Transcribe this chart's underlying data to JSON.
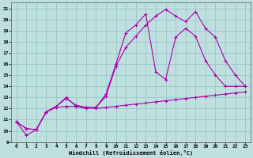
{
  "xlabel": "Windchill (Refroidissement éolien,°C)",
  "bg_color": "#c0e0e0",
  "grid_color": "#98c8c8",
  "line_color": "#aa00aa",
  "xlim": [
    -0.5,
    23.5
  ],
  "ylim": [
    9.0,
    21.5
  ],
  "xticks": [
    0,
    1,
    2,
    3,
    4,
    5,
    6,
    7,
    8,
    9,
    10,
    11,
    12,
    13,
    14,
    15,
    16,
    17,
    18,
    19,
    20,
    21,
    22,
    23
  ],
  "yticks": [
    9,
    10,
    11,
    12,
    13,
    14,
    15,
    16,
    17,
    18,
    19,
    20,
    21
  ],
  "line1_x": [
    0,
    1,
    2,
    3,
    4,
    5,
    6,
    7,
    8,
    9,
    10,
    11,
    12,
    13,
    14,
    15,
    16,
    17,
    18,
    19,
    20,
    21,
    22,
    23
  ],
  "line1_y": [
    10.8,
    9.6,
    10.1,
    11.7,
    12.1,
    12.2,
    12.2,
    12.1,
    12.0,
    12.1,
    12.2,
    12.3,
    12.4,
    12.5,
    12.6,
    12.7,
    12.8,
    12.9,
    13.0,
    13.1,
    13.2,
    13.3,
    13.4,
    13.5
  ],
  "line2_x": [
    0,
    1,
    2,
    3,
    4,
    5,
    6,
    7,
    8,
    9,
    10,
    11,
    12,
    13,
    14,
    15,
    16,
    17,
    18,
    19,
    20,
    21,
    22,
    23
  ],
  "line2_y": [
    10.8,
    10.2,
    10.1,
    11.7,
    12.2,
    12.9,
    12.3,
    12.1,
    12.1,
    13.1,
    15.8,
    17.5,
    18.5,
    19.5,
    20.3,
    20.9,
    20.3,
    19.8,
    20.7,
    19.2,
    18.4,
    16.3,
    15.0,
    14.0
  ],
  "line3_x": [
    0,
    1,
    2,
    3,
    4,
    5,
    6,
    7,
    8,
    9,
    10,
    11,
    12,
    13,
    14,
    15,
    16,
    17,
    18,
    19,
    20,
    21,
    22,
    23
  ],
  "line3_y": [
    10.8,
    10.2,
    10.1,
    11.7,
    12.2,
    13.0,
    12.2,
    12.0,
    12.1,
    13.3,
    16.0,
    18.8,
    19.5,
    20.5,
    15.3,
    14.6,
    18.4,
    19.2,
    18.5,
    16.3,
    15.0,
    14.0,
    14.0,
    14.0
  ]
}
